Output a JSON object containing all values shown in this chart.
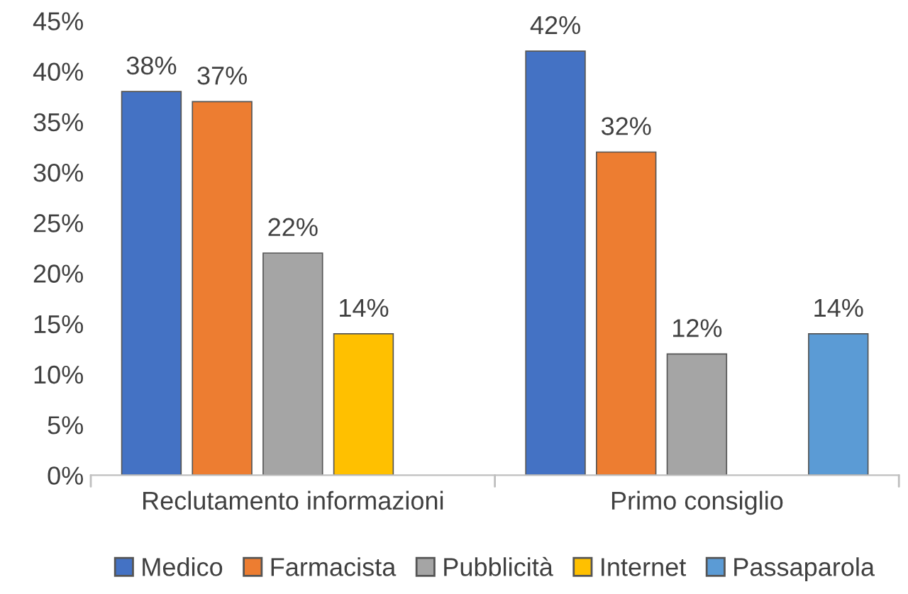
{
  "chart_data": {
    "type": "bar",
    "categories": [
      "Reclutamento informazioni",
      "Primo consiglio"
    ],
    "series": [
      {
        "name": "Medico",
        "color": "#4472c4",
        "values": [
          38,
          42
        ],
        "value_labels": [
          "38%",
          "42%"
        ]
      },
      {
        "name": "Farmacista",
        "color": "#ed7d31",
        "values": [
          37,
          32
        ],
        "value_labels": [
          "37%",
          "32%"
        ]
      },
      {
        "name": "Pubblicità",
        "color": "#a5a5a5",
        "values": [
          22,
          12
        ],
        "value_labels": [
          "22%",
          "12%"
        ]
      },
      {
        "name": "Internet",
        "color": "#ffc000",
        "values": [
          14,
          null
        ],
        "value_labels": [
          "14%",
          null
        ]
      },
      {
        "name": "Passaparola",
        "color": "#5b9bd5",
        "values": [
          null,
          14
        ],
        "value_labels": [
          null,
          "14%"
        ]
      }
    ],
    "ylim": [
      0,
      45
    ],
    "yticks": [
      {
        "value": 0,
        "label": "0%"
      },
      {
        "value": 5,
        "label": "5%"
      },
      {
        "value": 10,
        "label": "10%"
      },
      {
        "value": 15,
        "label": "15%"
      },
      {
        "value": 20,
        "label": "20%"
      },
      {
        "value": 25,
        "label": "25%"
      },
      {
        "value": 30,
        "label": "30%"
      },
      {
        "value": 35,
        "label": "35%"
      },
      {
        "value": 40,
        "label": "40%"
      },
      {
        "value": 45,
        "label": "45%"
      }
    ],
    "grid": false,
    "legend": "bottom"
  }
}
